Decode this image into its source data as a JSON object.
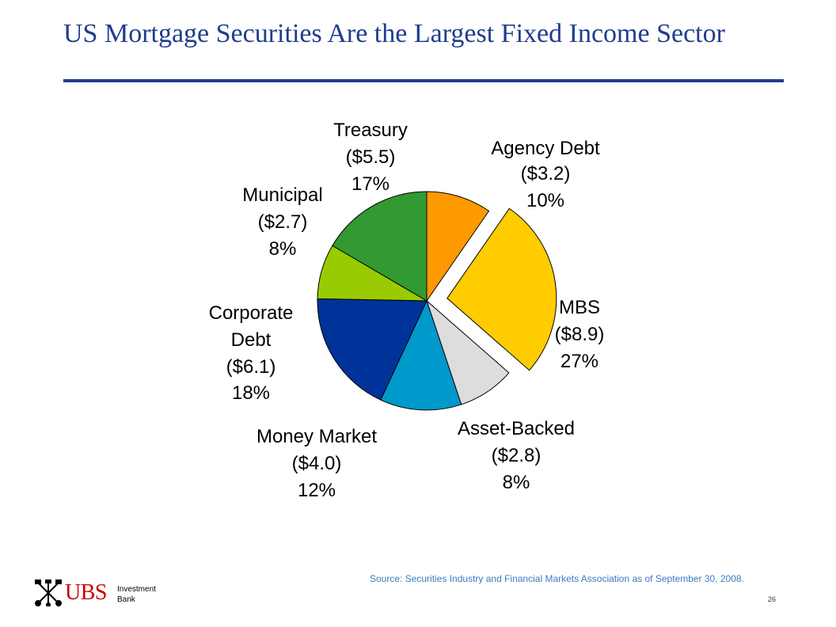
{
  "page": {
    "title": "US Mortgage Securities Are the Largest Fixed Income Sector",
    "source": "Source: Securities Industry and Financial Markets Association as of September 30, 2008.",
    "page_number": "26",
    "logo": {
      "brand": "UBS",
      "line1": "Investment",
      "line2": "Bank",
      "icon": "ubs-keys-icon"
    }
  },
  "chart_data": {
    "type": "pie",
    "title": "",
    "start": "top, clockwise",
    "exploded": "MBS",
    "slices": [
      {
        "name": "Agency Debt",
        "amount": "($3.2)",
        "percent": "10%",
        "value": 3.2,
        "color": "#ff9900"
      },
      {
        "name": "MBS",
        "amount": "($8.9)",
        "percent": "27%",
        "value": 8.9,
        "color": "#ffcc00"
      },
      {
        "name": "Asset-Backed",
        "amount": "($2.8)",
        "percent": "8%",
        "value": 2.8,
        "color": "#dddddd"
      },
      {
        "name": "Money Market",
        "amount": "($4.0)",
        "percent": "12%",
        "value": 4.0,
        "color": "#0099cc"
      },
      {
        "name": "Corporate Debt",
        "amount": "($6.1)",
        "percent": "18%",
        "value": 6.1,
        "color": "#003399"
      },
      {
        "name": "Municipal",
        "amount": "($2.7)",
        "percent": "8%",
        "value": 2.7,
        "color": "#99cc00"
      },
      {
        "name": "Treasury",
        "amount": "($5.5)",
        "percent": "17%",
        "value": 5.5,
        "color": "#339933"
      }
    ]
  }
}
